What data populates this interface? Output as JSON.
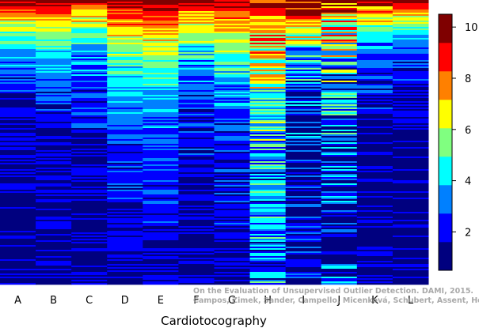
{
  "chart_data": {
    "type": "heatmap",
    "title": "",
    "xlabel": "Cardiotocography",
    "ylabel": "",
    "categories": [
      "A",
      "B",
      "C",
      "D",
      "E",
      "F",
      "G",
      "H",
      "I",
      "J",
      "K",
      "L"
    ],
    "colorbar": {
      "min": 0.5,
      "max": 10.5,
      "ticks": [
        2,
        4,
        6,
        8,
        10
      ]
    },
    "colors": [
      "#00007F",
      "#0000FF",
      "#0080FF",
      "#00FFFF",
      "#80FF80",
      "#FFFF00",
      "#FF8000",
      "#FF0000",
      "#7F0000"
    ],
    "row_sampling": "approximate",
    "column_profiles": [
      {
        "top": 10.0,
        "bottom": 1.0,
        "decay": 2.2,
        "noise": 1.2
      },
      {
        "top": 10.2,
        "bottom": 1.2,
        "decay": 2.0,
        "noise": 1.0
      },
      {
        "top": 9.5,
        "bottom": 1.2,
        "decay": 2.0,
        "noise": 1.3
      },
      {
        "top": 9.8,
        "bottom": 1.5,
        "decay": 1.4,
        "noise": 1.0
      },
      {
        "top": 10.3,
        "bottom": 1.6,
        "decay": 1.3,
        "noise": 0.9
      },
      {
        "top": 9.6,
        "bottom": 1.2,
        "decay": 1.8,
        "noise": 1.4
      },
      {
        "top": 9.8,
        "bottom": 1.5,
        "decay": 1.5,
        "noise": 1.2
      },
      {
        "top": 9.5,
        "bottom": 2.5,
        "decay": 1.0,
        "noise": 2.2
      },
      {
        "top": 10.2,
        "bottom": 1.0,
        "decay": 1.8,
        "noise": 2.5
      },
      {
        "top": 9.0,
        "bottom": 1.0,
        "decay": 1.2,
        "noise": 3.0
      },
      {
        "top": 9.5,
        "bottom": 1.0,
        "decay": 2.5,
        "noise": 1.5
      },
      {
        "top": 10.3,
        "bottom": 1.0,
        "decay": 2.8,
        "noise": 1.1
      }
    ]
  },
  "watermark": {
    "line1": "On the Evaluation of Unsupervised Outlier Detection. DAMI, 2015.",
    "line2": "Campos, Zimek, Sander, Campello, Micenková, Schubert, Assent, Houle"
  }
}
